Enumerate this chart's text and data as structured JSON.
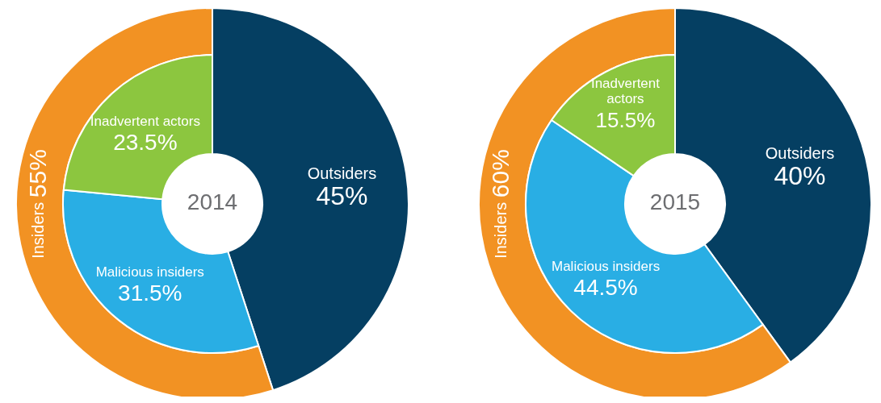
{
  "chart_data": [
    {
      "type": "other",
      "title": "2014",
      "categories": [
        "Outsiders",
        "Insiders",
        "Malicious insiders",
        "Inadvertent actors"
      ],
      "values": [
        45,
        55,
        31.5,
        23.5
      ],
      "value_labels": [
        "45%",
        "55%",
        "31.5%",
        "23.5%"
      ],
      "colors": [
        "#053f62",
        "#f29223",
        "#29aee4",
        "#8cc63f"
      ]
    },
    {
      "type": "other",
      "title": "2015",
      "categories": [
        "Outsiders",
        "Insiders",
        "Malicious insiders",
        "Inadvertent actors"
      ],
      "values": [
        40,
        60,
        44.5,
        15.5
      ],
      "value_labels": [
        "40%",
        "60%",
        "44.5%",
        "15.5%"
      ],
      "colors": [
        "#053f62",
        "#f29223",
        "#29aee4",
        "#8cc63f"
      ]
    }
  ]
}
